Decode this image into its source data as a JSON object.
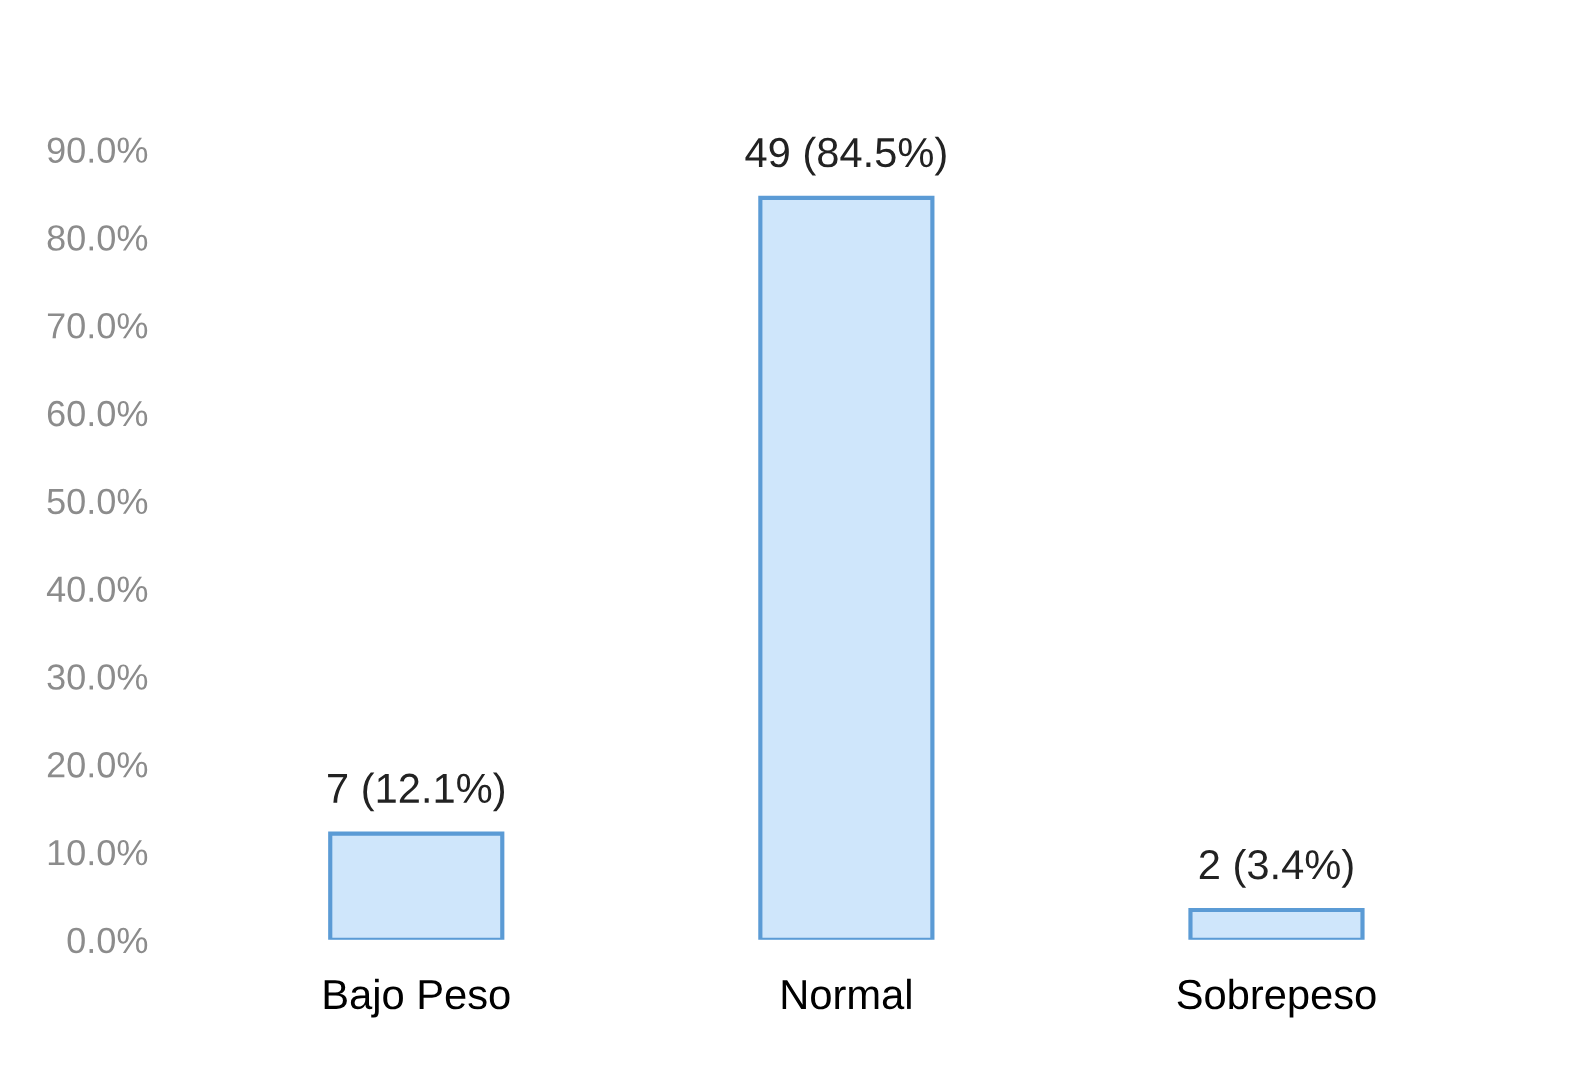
{
  "chart_data": {
    "type": "bar",
    "categories": [
      "Bajo Peso",
      "Normal",
      "Sobrepeso"
    ],
    "values": [
      12.1,
      84.5,
      3.4
    ],
    "value_labels": [
      "7 (12.1%)",
      "49 (84.5%)",
      "2 (3.4%)"
    ],
    "color": "#cfe6fb",
    "ylim": [
      0,
      90
    ],
    "yticks": [
      {
        "value": 0,
        "label": "0.0%"
      },
      {
        "value": 10,
        "label": "10.0%"
      },
      {
        "value": 20,
        "label": "20.0%"
      },
      {
        "value": 30,
        "label": "30.0%"
      },
      {
        "value": 40,
        "label": "40.0%"
      },
      {
        "value": 50,
        "label": "50.0%"
      },
      {
        "value": 60,
        "label": "60.0%"
      },
      {
        "value": 70,
        "label": "70.0%"
      },
      {
        "value": 80,
        "label": "80.0%"
      },
      {
        "value": 90,
        "label": "90.0%"
      }
    ],
    "grid": false,
    "legend": false
  }
}
